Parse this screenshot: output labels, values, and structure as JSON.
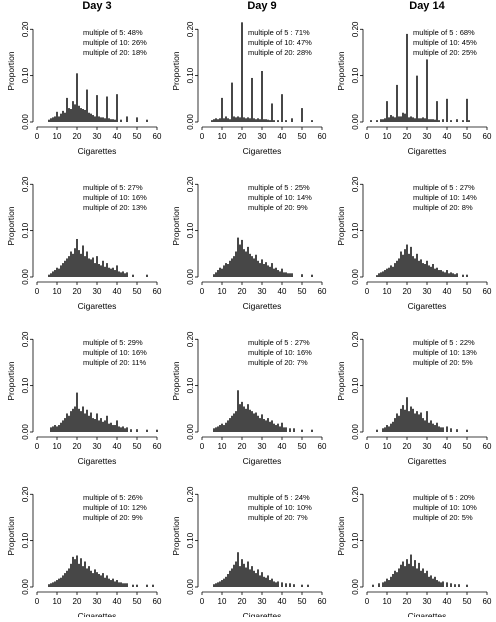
{
  "chart_data": {
    "type": "bar",
    "layout": "grid",
    "rows": 4,
    "columns": [
      "Day 3",
      "Day 9",
      "Day 14"
    ],
    "xlabel": "Cigarettes",
    "ylabel": "Proportion",
    "xlim": [
      0,
      60
    ],
    "ylim": [
      0,
      0.22
    ],
    "xticks": [
      "0",
      "10",
      "20",
      "30",
      "40",
      "50",
      "60"
    ],
    "yticks": [
      "0.00",
      "0.10",
      "0.20"
    ],
    "bar_color": "#000000",
    "panels": [
      {
        "row": 1,
        "column": "Day 3",
        "annotations": [
          "multiple of 5: 48%",
          "multiple of 10: 26%",
          "multiple of 20: 18%"
        ],
        "x": [
          6,
          7,
          8,
          9,
          10,
          11,
          12,
          13,
          14,
          15,
          16,
          17,
          18,
          19,
          20,
          21,
          22,
          23,
          24,
          25,
          26,
          27,
          28,
          29,
          30,
          31,
          32,
          33,
          34,
          35,
          36,
          37,
          38,
          39,
          40,
          42,
          45,
          50,
          55
        ],
        "values": [
          0.005,
          0.008,
          0.01,
          0.012,
          0.022,
          0.012,
          0.018,
          0.024,
          0.02,
          0.052,
          0.03,
          0.028,
          0.045,
          0.038,
          0.105,
          0.035,
          0.03,
          0.028,
          0.026,
          0.07,
          0.02,
          0.018,
          0.015,
          0.012,
          0.058,
          0.012,
          0.01,
          0.01,
          0.008,
          0.055,
          0.008,
          0.006,
          0.006,
          0.005,
          0.06,
          0.005,
          0.012,
          0.01,
          0.005
        ]
      },
      {
        "row": 1,
        "column": "Day 9",
        "annotations": [
          "multiple of 5 : 71%",
          "multiple of 10: 47%",
          "multiple of 20: 28%"
        ],
        "x": [
          5,
          6,
          7,
          8,
          9,
          10,
          11,
          12,
          13,
          14,
          15,
          16,
          17,
          18,
          19,
          20,
          21,
          22,
          23,
          24,
          25,
          26,
          27,
          28,
          29,
          30,
          31,
          32,
          33,
          34,
          35,
          36,
          38,
          40,
          42,
          45,
          50,
          55
        ],
        "values": [
          0.004,
          0.006,
          0.008,
          0.006,
          0.008,
          0.052,
          0.008,
          0.012,
          0.008,
          0.006,
          0.085,
          0.012,
          0.01,
          0.012,
          0.01,
          0.215,
          0.01,
          0.008,
          0.01,
          0.008,
          0.095,
          0.008,
          0.006,
          0.008,
          0.006,
          0.11,
          0.006,
          0.006,
          0.005,
          0.004,
          0.04,
          0.004,
          0.004,
          0.06,
          0.004,
          0.008,
          0.03,
          0.004
        ]
      },
      {
        "row": 1,
        "column": "Day 14",
        "annotations": [
          "multiple of 5 : 68%",
          "multiple of 10: 45%",
          "multiple of 20: 25%"
        ],
        "x": [
          2,
          5,
          7,
          8,
          9,
          10,
          11,
          12,
          13,
          14,
          15,
          16,
          17,
          18,
          19,
          20,
          21,
          22,
          23,
          24,
          25,
          26,
          27,
          28,
          29,
          30,
          31,
          32,
          33,
          34,
          35,
          36,
          38,
          40,
          42,
          45,
          48,
          50,
          51
        ],
        "values": [
          0.004,
          0.004,
          0.006,
          0.006,
          0.008,
          0.045,
          0.01,
          0.015,
          0.012,
          0.01,
          0.08,
          0.012,
          0.012,
          0.02,
          0.018,
          0.19,
          0.01,
          0.012,
          0.01,
          0.008,
          0.1,
          0.008,
          0.008,
          0.01,
          0.008,
          0.135,
          0.006,
          0.006,
          0.006,
          0.005,
          0.045,
          0.004,
          0.006,
          0.05,
          0.004,
          0.006,
          0.004,
          0.05,
          0.004
        ]
      },
      {
        "row": 2,
        "column": "Day 3",
        "annotations": [
          "multiple of 5: 27%",
          "multiple of 10: 16%",
          "multiple of 20: 13%"
        ],
        "x": [
          6,
          7,
          8,
          9,
          10,
          11,
          12,
          13,
          14,
          15,
          16,
          17,
          18,
          19,
          20,
          21,
          22,
          23,
          24,
          25,
          26,
          27,
          28,
          29,
          30,
          31,
          32,
          33,
          34,
          35,
          36,
          37,
          38,
          39,
          40,
          41,
          42,
          43,
          44,
          45,
          48,
          55
        ],
        "values": [
          0.005,
          0.008,
          0.012,
          0.015,
          0.02,
          0.018,
          0.025,
          0.03,
          0.035,
          0.04,
          0.045,
          0.055,
          0.05,
          0.062,
          0.082,
          0.058,
          0.05,
          0.068,
          0.045,
          0.055,
          0.04,
          0.038,
          0.042,
          0.03,
          0.045,
          0.028,
          0.025,
          0.035,
          0.022,
          0.03,
          0.02,
          0.018,
          0.02,
          0.015,
          0.025,
          0.012,
          0.01,
          0.012,
          0.008,
          0.01,
          0.005,
          0.005
        ]
      },
      {
        "row": 2,
        "column": "Day 9",
        "annotations": [
          "multiple of 5 : 25%",
          "multiple of 10: 14%",
          "multiple of 20: 9%"
        ],
        "x": [
          6,
          7,
          8,
          9,
          10,
          11,
          12,
          13,
          14,
          15,
          16,
          17,
          18,
          19,
          20,
          21,
          22,
          23,
          24,
          25,
          26,
          27,
          28,
          29,
          30,
          31,
          32,
          33,
          34,
          35,
          36,
          37,
          38,
          39,
          40,
          41,
          42,
          43,
          44,
          45,
          50,
          55
        ],
        "values": [
          0.006,
          0.01,
          0.015,
          0.02,
          0.018,
          0.025,
          0.03,
          0.028,
          0.035,
          0.04,
          0.045,
          0.055,
          0.085,
          0.07,
          0.08,
          0.06,
          0.055,
          0.065,
          0.05,
          0.045,
          0.04,
          0.048,
          0.035,
          0.03,
          0.038,
          0.028,
          0.032,
          0.025,
          0.022,
          0.03,
          0.018,
          0.02,
          0.015,
          0.012,
          0.018,
          0.01,
          0.01,
          0.008,
          0.008,
          0.008,
          0.006,
          0.005
        ]
      },
      {
        "row": 2,
        "column": "Day 14",
        "annotations": [
          "multiple of 5 : 27%",
          "multiple of 10: 14%",
          "multiple of 20: 8%"
        ],
        "x": [
          5,
          6,
          7,
          8,
          9,
          10,
          11,
          12,
          13,
          14,
          15,
          16,
          17,
          18,
          19,
          20,
          21,
          22,
          23,
          24,
          25,
          26,
          27,
          28,
          29,
          30,
          31,
          32,
          33,
          34,
          35,
          36,
          37,
          38,
          39,
          40,
          41,
          42,
          43,
          44,
          45,
          48,
          50
        ],
        "values": [
          0.004,
          0.008,
          0.01,
          0.012,
          0.015,
          0.018,
          0.02,
          0.025,
          0.022,
          0.03,
          0.035,
          0.04,
          0.055,
          0.048,
          0.06,
          0.07,
          0.05,
          0.065,
          0.045,
          0.04,
          0.05,
          0.035,
          0.038,
          0.03,
          0.028,
          0.035,
          0.025,
          0.022,
          0.028,
          0.018,
          0.02,
          0.015,
          0.015,
          0.012,
          0.01,
          0.015,
          0.008,
          0.01,
          0.008,
          0.006,
          0.008,
          0.005,
          0.005
        ]
      },
      {
        "row": 3,
        "column": "Day 3",
        "annotations": [
          "multiple of 5: 29%",
          "multiple of 10: 16%",
          "multiple of 20: 11%"
        ],
        "x": [
          7,
          8,
          9,
          10,
          11,
          12,
          13,
          14,
          15,
          16,
          17,
          18,
          19,
          20,
          21,
          22,
          23,
          24,
          25,
          26,
          27,
          28,
          29,
          30,
          31,
          32,
          33,
          34,
          35,
          36,
          37,
          38,
          39,
          40,
          41,
          42,
          43,
          44,
          45,
          47,
          50,
          55,
          60
        ],
        "values": [
          0.01,
          0.012,
          0.015,
          0.012,
          0.015,
          0.02,
          0.025,
          0.03,
          0.04,
          0.035,
          0.045,
          0.05,
          0.055,
          0.085,
          0.05,
          0.045,
          0.055,
          0.04,
          0.048,
          0.035,
          0.042,
          0.03,
          0.028,
          0.04,
          0.025,
          0.03,
          0.022,
          0.025,
          0.035,
          0.018,
          0.02,
          0.015,
          0.015,
          0.025,
          0.012,
          0.01,
          0.012,
          0.008,
          0.01,
          0.006,
          0.006,
          0.005,
          0.005
        ]
      },
      {
        "row": 3,
        "column": "Day 9",
        "annotations": [
          "multiple of 5 : 27%",
          "multiple of 10: 16%",
          "multiple of 20: 7%"
        ],
        "x": [
          6,
          7,
          8,
          9,
          10,
          11,
          12,
          13,
          14,
          15,
          16,
          17,
          18,
          19,
          20,
          21,
          22,
          23,
          24,
          25,
          26,
          27,
          28,
          29,
          30,
          31,
          32,
          33,
          34,
          35,
          36,
          37,
          38,
          39,
          40,
          41,
          42,
          44,
          46,
          50,
          55
        ],
        "values": [
          0.008,
          0.01,
          0.012,
          0.015,
          0.018,
          0.015,
          0.02,
          0.025,
          0.03,
          0.035,
          0.04,
          0.045,
          0.09,
          0.06,
          0.065,
          0.055,
          0.05,
          0.06,
          0.048,
          0.045,
          0.04,
          0.042,
          0.035,
          0.03,
          0.038,
          0.028,
          0.025,
          0.03,
          0.022,
          0.025,
          0.018,
          0.015,
          0.018,
          0.012,
          0.02,
          0.01,
          0.01,
          0.008,
          0.008,
          0.005,
          0.005
        ]
      },
      {
        "row": 3,
        "column": "Day 14",
        "annotations": [
          "multiple of 5 : 22%",
          "multiple of 10: 13%",
          "multiple of 20: 5%"
        ],
        "x": [
          5,
          8,
          9,
          10,
          11,
          12,
          13,
          14,
          15,
          16,
          17,
          18,
          19,
          20,
          21,
          22,
          23,
          24,
          25,
          26,
          27,
          28,
          29,
          30,
          31,
          32,
          33,
          34,
          35,
          36,
          37,
          38,
          40,
          42,
          45,
          50
        ],
        "values": [
          0.005,
          0.008,
          0.01,
          0.015,
          0.012,
          0.018,
          0.022,
          0.03,
          0.04,
          0.035,
          0.05,
          0.058,
          0.048,
          0.075,
          0.045,
          0.055,
          0.05,
          0.04,
          0.045,
          0.038,
          0.042,
          0.03,
          0.025,
          0.045,
          0.02,
          0.025,
          0.018,
          0.015,
          0.02,
          0.012,
          0.01,
          0.01,
          0.012,
          0.008,
          0.006,
          0.005
        ]
      },
      {
        "row": 4,
        "column": "Day 3",
        "annotations": [
          "multiple of 5: 26%",
          "multiple of 10: 12%",
          "multiple of 20: 9%"
        ],
        "x": [
          6,
          7,
          8,
          9,
          10,
          11,
          12,
          13,
          14,
          15,
          16,
          17,
          18,
          19,
          20,
          21,
          22,
          23,
          24,
          25,
          26,
          27,
          28,
          29,
          30,
          31,
          32,
          33,
          34,
          35,
          36,
          37,
          38,
          39,
          40,
          41,
          42,
          43,
          44,
          45,
          48,
          50,
          55,
          58
        ],
        "values": [
          0.006,
          0.008,
          0.01,
          0.012,
          0.015,
          0.018,
          0.02,
          0.025,
          0.03,
          0.035,
          0.04,
          0.05,
          0.065,
          0.06,
          0.068,
          0.05,
          0.062,
          0.045,
          0.055,
          0.04,
          0.045,
          0.035,
          0.03,
          0.038,
          0.032,
          0.028,
          0.025,
          0.03,
          0.02,
          0.025,
          0.018,
          0.015,
          0.018,
          0.012,
          0.015,
          0.01,
          0.01,
          0.008,
          0.008,
          0.008,
          0.005,
          0.005,
          0.005,
          0.005
        ]
      },
      {
        "row": 4,
        "column": "Day 9",
        "annotations": [
          "multiple of 5 : 24%",
          "multiple of 10: 10%",
          "multiple of 20: 7%"
        ],
        "x": [
          6,
          7,
          8,
          9,
          10,
          11,
          12,
          13,
          14,
          15,
          16,
          17,
          18,
          19,
          20,
          21,
          22,
          23,
          24,
          25,
          26,
          27,
          28,
          29,
          30,
          31,
          32,
          33,
          34,
          35,
          36,
          37,
          38,
          40,
          42,
          44,
          46,
          50,
          53
        ],
        "values": [
          0.006,
          0.008,
          0.01,
          0.012,
          0.015,
          0.018,
          0.022,
          0.028,
          0.035,
          0.04,
          0.048,
          0.055,
          0.075,
          0.045,
          0.06,
          0.05,
          0.042,
          0.055,
          0.038,
          0.045,
          0.035,
          0.03,
          0.038,
          0.025,
          0.032,
          0.022,
          0.02,
          0.025,
          0.015,
          0.018,
          0.012,
          0.01,
          0.012,
          0.01,
          0.008,
          0.008,
          0.006,
          0.005,
          0.005
        ]
      },
      {
        "row": 4,
        "column": "Day 14",
        "annotations": [
          "multiple of 5 : 20%",
          "multiple of 10: 10%",
          "multiple of 20: 5%"
        ],
        "x": [
          3,
          6,
          8,
          9,
          10,
          11,
          12,
          13,
          14,
          15,
          16,
          17,
          18,
          19,
          20,
          21,
          22,
          23,
          24,
          25,
          26,
          27,
          28,
          29,
          30,
          31,
          32,
          33,
          34,
          35,
          36,
          37,
          38,
          40,
          42,
          44,
          46,
          50
        ],
        "values": [
          0.005,
          0.008,
          0.01,
          0.012,
          0.018,
          0.015,
          0.022,
          0.028,
          0.035,
          0.032,
          0.04,
          0.048,
          0.055,
          0.045,
          0.06,
          0.05,
          0.07,
          0.045,
          0.058,
          0.04,
          0.052,
          0.035,
          0.04,
          0.03,
          0.035,
          0.022,
          0.025,
          0.018,
          0.022,
          0.015,
          0.012,
          0.01,
          0.012,
          0.01,
          0.008,
          0.006,
          0.006,
          0.005
        ]
      }
    ]
  }
}
